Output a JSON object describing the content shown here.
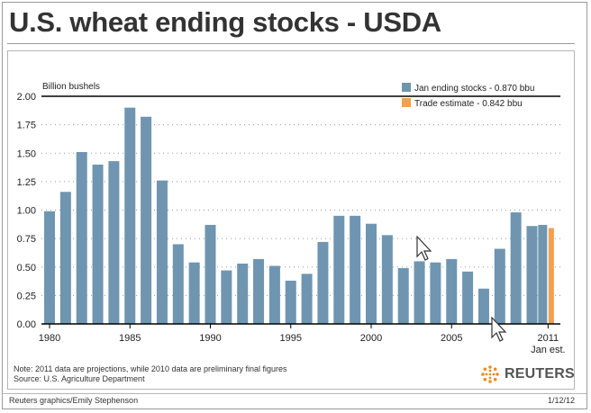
{
  "title": "U.S. wheat ending stocks - USDA",
  "note_line1": "Note: 2011 data are projections, while 2010 data are preliminary final figures",
  "note_line2": "Source: U.S. Agriculture Department",
  "credit": "Reuters graphics/Emily Stephenson",
  "date": "1/12/12",
  "brand": "REUTERS",
  "colors": {
    "bar": "#6f95b1",
    "estimate": "#f0a050"
  },
  "chart_data": {
    "type": "bar",
    "title": "U.S. wheat ending stocks - USDA",
    "ylabel": "Billion bushels",
    "ylim": [
      0,
      2.0
    ],
    "yticks": [
      "0.00",
      "0.25",
      "0.50",
      "0.75",
      "1.00",
      "1.25",
      "1.50",
      "1.75",
      "2.00"
    ],
    "xticks": [
      "1980",
      "1985",
      "1990",
      "1995",
      "2000",
      "2005",
      "2011"
    ],
    "xtick_sub": "Jan est.",
    "grid": true,
    "legend_position": "top-right",
    "categories": [
      1980,
      1981,
      1982,
      1983,
      1984,
      1985,
      1986,
      1987,
      1988,
      1989,
      1990,
      1991,
      1992,
      1993,
      1994,
      1995,
      1996,
      1997,
      1998,
      1999,
      2000,
      2001,
      2002,
      2003,
      2004,
      2005,
      2006,
      2007,
      2008,
      2009,
      2010,
      2011
    ],
    "series": [
      {
        "name": "Jan ending stocks - 0.870 bbu",
        "values": [
          0.99,
          1.16,
          1.51,
          1.4,
          1.43,
          1.9,
          1.82,
          1.26,
          0.7,
          0.54,
          0.87,
          0.47,
          0.53,
          0.57,
          0.51,
          0.38,
          0.44,
          0.72,
          0.95,
          0.95,
          0.88,
          0.78,
          0.49,
          0.55,
          0.54,
          0.57,
          0.46,
          0.31,
          0.66,
          0.98,
          0.86,
          0.87
        ]
      },
      {
        "name": "Trade estimate - 0.842 bbu",
        "category": 2011,
        "value": 0.842
      }
    ]
  }
}
